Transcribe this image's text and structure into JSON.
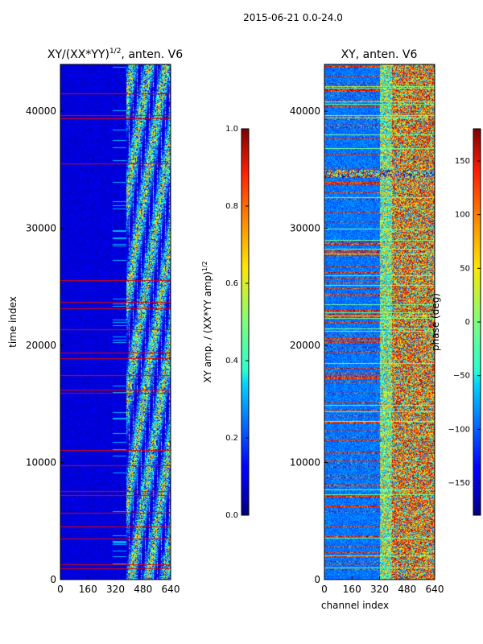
{
  "figure": {
    "suptitle": "2015-06-21 0.0-24.0"
  },
  "chart_data": [
    {
      "type": "heatmap",
      "title": "XY/(XX*YY)",
      "title_exponent": "1/2",
      "title_suffix": ", anten. V6",
      "xlabel": "",
      "ylabel": "time index",
      "xlim": [
        0,
        640
      ],
      "ylim": [
        0,
        44000
      ],
      "xticks": [
        "0",
        "160",
        "320",
        "480",
        "640"
      ],
      "xtick_values": [
        0,
        160,
        320,
        480,
        640
      ],
      "yticks": [
        "0",
        "10000",
        "20000",
        "30000",
        "40000"
      ],
      "ytick_values": [
        0,
        10000,
        20000,
        30000,
        40000
      ],
      "colormap": "jet",
      "colorbar": {
        "label": "XY amp. / (XX*YY amp)",
        "label_exponent": "1/2",
        "range": [
          0.0,
          1.0
        ],
        "ticks": [
          "0.0",
          "0.2",
          "0.4",
          "0.6",
          "0.8",
          "1.0"
        ],
        "tick_values": [
          0.0,
          0.2,
          0.4,
          0.6,
          0.8,
          1.0
        ]
      },
      "description_regions": [
        {
          "x_range": [
            0,
            380
          ],
          "typical_value": 0.05
        },
        {
          "x_range": [
            380,
            640
          ],
          "typical_value": 0.5
        }
      ]
    },
    {
      "type": "heatmap",
      "title": "XY, anten. V6",
      "xlabel": "channel index",
      "ylabel": "",
      "xlim": [
        0,
        640
      ],
      "ylim": [
        0,
        44000
      ],
      "xticks": [
        "0",
        "160",
        "320",
        "480",
        "640"
      ],
      "xtick_values": [
        0,
        160,
        320,
        480,
        640
      ],
      "yticks": [
        "0",
        "10000",
        "20000",
        "30000",
        "40000"
      ],
      "ytick_values": [
        0,
        10000,
        20000,
        30000,
        40000
      ],
      "colormap": "jet",
      "colorbar": {
        "label": "phase (deg)",
        "range": [
          -180,
          180
        ],
        "ticks": [
          "−150",
          "−100",
          "−50",
          "0",
          "50",
          "100",
          "150"
        ],
        "tick_values": [
          -150,
          -100,
          -50,
          0,
          50,
          100,
          150
        ]
      }
    }
  ]
}
